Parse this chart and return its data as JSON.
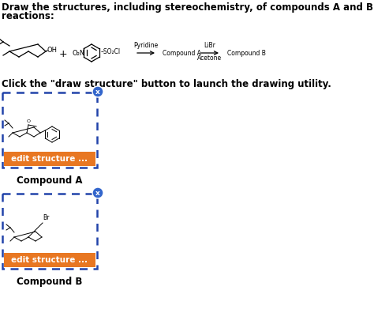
{
  "title_line1": "Draw the structures, including stereochemistry, of compounds A and B in the following sequence of",
  "title_line2": "reactions:",
  "instruction_text": "Click the \"draw structure\" button to launch the drawing utility.",
  "compound_a_label": "Compound A",
  "compound_b_label": "Compound B",
  "edit_button_text": "edit structure ...",
  "edit_button_color": "#E87722",
  "box_border_color": "#2244AA",
  "background_color": "#FFFFFF",
  "close_btn_color": "#3366CC",
  "reaction_arrow1_text_top": "Pyridine",
  "reaction_arrow2_text_top": "LiBr",
  "reaction_arrow2_text_bot": "Acetone",
  "reaction_compound_a": "Compound A",
  "reaction_compound_b": "Compound B",
  "font_size_title": 8.5,
  "font_size_reaction": 6.5,
  "font_size_instruction": 8.5,
  "font_size_label": 8.5,
  "font_size_btn": 7.5
}
